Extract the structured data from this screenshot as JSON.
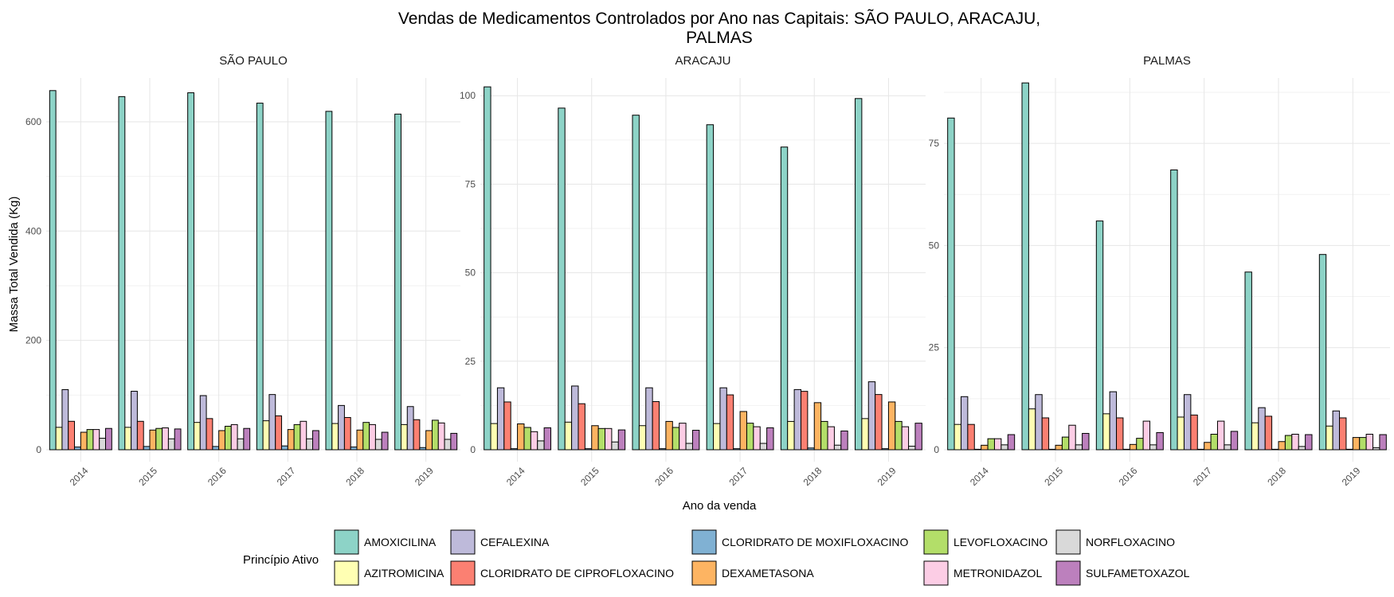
{
  "title_line1": "Vendas de Medicamentos Controlados por Ano nas Capitais: SÃO PAULO, ARACAJU,",
  "title_line2": "PALMAS",
  "xlabel": "Ano da venda",
  "ylabel": "Massa Total Vendida (Kg)",
  "legend_title": "Princípio Ativo",
  "legend_placement": "bottom",
  "colors": {
    "AMOXICILINA": "#8dd3c7",
    "AZITROMICINA": "#ffffb3",
    "CEFALEXINA": "#bebada",
    "CLORIDRATO DE CIPROFLOXACINO": "#fb8072",
    "CLORIDRATO DE MOXIFLOXACINO": "#80b1d3",
    "DEXAMETASONA": "#fdb462",
    "LEVOFLOXACINO": "#b3de69",
    "METRONIDAZOL": "#fccde5",
    "NORFLOXACINO": "#d9d9d9",
    "SULFAMETOXAZOL": "#bc80bd"
  },
  "chart_data": [
    {
      "type": "bar",
      "panel": "SÃO PAULO",
      "categories": [
        "2014",
        "2015",
        "2016",
        "2017",
        "2018",
        "2019"
      ],
      "ylim": [
        0,
        680
      ],
      "yticks": [
        0,
        200,
        400,
        600
      ],
      "series": [
        {
          "name": "AMOXICILINA",
          "values": [
            657,
            646,
            653,
            634,
            619,
            614
          ]
        },
        {
          "name": "AZITROMICINA",
          "values": [
            41,
            41,
            50,
            53,
            48,
            46
          ]
        },
        {
          "name": "CEFALEXINA",
          "values": [
            110,
            107,
            99,
            101,
            81,
            79
          ]
        },
        {
          "name": "CLORIDRATO DE CIPROFLOXACINO",
          "values": [
            52,
            52,
            57,
            62,
            59,
            55
          ]
        },
        {
          "name": "CLORIDRATO DE MOXIFLOXACINO",
          "values": [
            5,
            6,
            6,
            7,
            5,
            4
          ]
        },
        {
          "name": "DEXAMETASONA",
          "values": [
            32,
            36,
            35,
            37,
            36,
            35
          ]
        },
        {
          "name": "LEVOFLOXACINO",
          "values": [
            37,
            39,
            43,
            46,
            50,
            54
          ]
        },
        {
          "name": "METRONIDAZOL",
          "values": [
            37,
            40,
            46,
            52,
            46,
            49
          ]
        },
        {
          "name": "NORFLOXACINO",
          "values": [
            21,
            20,
            20,
            20,
            19,
            19
          ]
        },
        {
          "name": "SULFAMETOXAZOL",
          "values": [
            39,
            38,
            39,
            35,
            32,
            30
          ]
        }
      ]
    },
    {
      "type": "bar",
      "panel": "ARACAJU",
      "categories": [
        "2014",
        "2015",
        "2016",
        "2017",
        "2018",
        "2019"
      ],
      "ylim": [
        0,
        105
      ],
      "yticks": [
        0,
        25,
        50,
        75,
        100
      ],
      "series": [
        {
          "name": "AMOXICILINA",
          "values": [
            102.5,
            96.5,
            94.5,
            91.8,
            85.5,
            99.2
          ]
        },
        {
          "name": "AZITROMICINA",
          "values": [
            7.4,
            7.8,
            6.8,
            7.4,
            8.0,
            8.8
          ]
        },
        {
          "name": "CEFALEXINA",
          "values": [
            17.5,
            18.0,
            17.5,
            17.5,
            17.0,
            19.2
          ]
        },
        {
          "name": "CLORIDRATO DE CIPROFLOXACINO",
          "values": [
            13.5,
            13.0,
            13.6,
            15.5,
            16.5,
            15.6
          ]
        },
        {
          "name": "CLORIDRATO DE MOXIFLOXACINO",
          "values": [
            0.3,
            0.3,
            0.3,
            0.3,
            0.5,
            0.3
          ]
        },
        {
          "name": "DEXAMETASONA",
          "values": [
            7.3,
            6.8,
            8.0,
            10.8,
            13.3,
            13.5
          ]
        },
        {
          "name": "LEVOFLOXACINO",
          "values": [
            6.3,
            6.0,
            6.3,
            7.5,
            8.0,
            8.0
          ]
        },
        {
          "name": "METRONIDAZOL",
          "values": [
            5.1,
            6.0,
            7.5,
            6.5,
            6.5,
            6.5
          ]
        },
        {
          "name": "NORFLOXACINO",
          "values": [
            2.5,
            2.2,
            1.8,
            1.8,
            1.3,
            1.0
          ]
        },
        {
          "name": "SULFAMETOXAZOL",
          "values": [
            6.2,
            5.6,
            5.5,
            6.2,
            5.3,
            7.5
          ]
        }
      ]
    },
    {
      "type": "bar",
      "panel": "PALMAS",
      "categories": [
        "2014",
        "2015",
        "2016",
        "2017",
        "2018",
        "2019"
      ],
      "ylim": [
        0,
        91
      ],
      "yticks": [
        0,
        25,
        50,
        75
      ],
      "series": [
        {
          "name": "AMOXICILINA",
          "values": [
            81.2,
            89.8,
            56.0,
            68.5,
            43.5,
            47.8
          ]
        },
        {
          "name": "AZITROMICINA",
          "values": [
            6.2,
            10.0,
            8.8,
            8.0,
            6.6,
            5.8
          ]
        },
        {
          "name": "CEFALEXINA",
          "values": [
            13.0,
            13.5,
            14.2,
            13.5,
            10.3,
            9.5
          ]
        },
        {
          "name": "CLORIDRATO DE CIPROFLOXACINO",
          "values": [
            6.2,
            7.8,
            7.8,
            8.5,
            8.2,
            7.8
          ]
        },
        {
          "name": "CLORIDRATO DE MOXIFLOXACINO",
          "values": [
            0.1,
            0.1,
            0.1,
            0.1,
            0.1,
            0.1
          ]
        },
        {
          "name": "DEXAMETASONA",
          "values": [
            1.1,
            1.1,
            1.3,
            1.8,
            2.0,
            3.0
          ]
        },
        {
          "name": "LEVOFLOXACINO",
          "values": [
            2.7,
            3.1,
            2.8,
            3.8,
            3.5,
            3.0
          ]
        },
        {
          "name": "METRONIDAZOL",
          "values": [
            2.7,
            6.0,
            7.0,
            7.0,
            3.8,
            3.8
          ]
        },
        {
          "name": "NORFLOXACINO",
          "values": [
            1.2,
            1.2,
            1.2,
            1.2,
            0.8,
            0.5
          ]
        },
        {
          "name": "SULFAMETOXAZOL",
          "values": [
            3.7,
            4.0,
            4.2,
            4.5,
            3.7,
            3.7
          ]
        }
      ]
    }
  ]
}
